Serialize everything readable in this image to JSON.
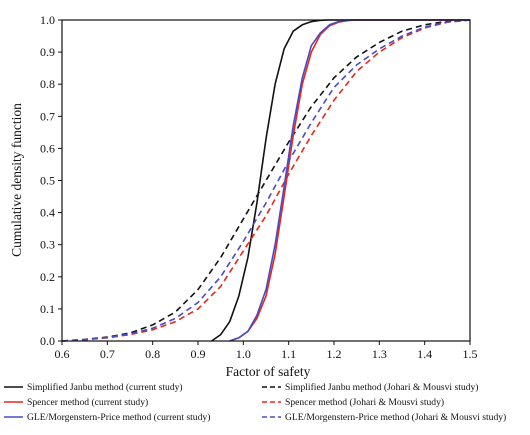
{
  "chart_data": {
    "type": "line",
    "title": "",
    "xlabel": "Factor of safety",
    "ylabel": "Cumulative density function",
    "xlim": [
      0.6,
      1.5
    ],
    "ylim": [
      0.0,
      1.0
    ],
    "x_ticks": [
      "0.6",
      "0.7",
      "0.8",
      "0.9",
      "1.0",
      "1.1",
      "1.2",
      "1.3",
      "1.4",
      "1.5"
    ],
    "y_ticks": [
      "0.0",
      "0.1",
      "0.2",
      "0.3",
      "0.4",
      "0.5",
      "0.6",
      "0.7",
      "0.8",
      "0.9",
      "1.0"
    ],
    "grid": false,
    "legend_position": "below",
    "series": [
      {
        "name": "Simplified Janbu method (current study)",
        "color": "#111111",
        "style": "solid",
        "x": [
          0.93,
          0.95,
          0.97,
          0.99,
          1.01,
          1.03,
          1.05,
          1.07,
          1.09,
          1.11,
          1.13,
          1.15,
          1.17,
          1.19,
          1.22,
          1.5
        ],
        "y": [
          0.0,
          0.02,
          0.06,
          0.14,
          0.26,
          0.43,
          0.63,
          0.8,
          0.91,
          0.965,
          0.985,
          0.995,
          0.999,
          1.0,
          1.0,
          1.0
        ]
      },
      {
        "name": "Simplified Janbu method (Johari & Mousvi study)",
        "color": "#111111",
        "style": "dashed",
        "x": [
          0.6,
          0.65,
          0.7,
          0.75,
          0.8,
          0.85,
          0.9,
          0.95,
          1.0,
          1.05,
          1.1,
          1.15,
          1.2,
          1.25,
          1.3,
          1.35,
          1.4,
          1.45,
          1.5
        ],
        "y": [
          0.0,
          0.005,
          0.012,
          0.025,
          0.05,
          0.09,
          0.16,
          0.26,
          0.38,
          0.5,
          0.62,
          0.73,
          0.82,
          0.885,
          0.93,
          0.965,
          0.985,
          0.996,
          1.0
        ]
      },
      {
        "name": "Spencer method (current study)",
        "color": "#e8261c",
        "style": "solid",
        "x": [
          0.97,
          0.99,
          1.01,
          1.03,
          1.05,
          1.07,
          1.09,
          1.11,
          1.13,
          1.15,
          1.17,
          1.19,
          1.21,
          1.23,
          1.25,
          1.28,
          1.5
        ],
        "y": [
          0.0,
          0.01,
          0.03,
          0.07,
          0.14,
          0.27,
          0.45,
          0.64,
          0.8,
          0.9,
          0.955,
          0.982,
          0.993,
          0.998,
          1.0,
          1.0,
          1.0
        ]
      },
      {
        "name": "Spencer method (Johari & Mousvi study)",
        "color": "#e8261c",
        "style": "dashed",
        "x": [
          0.6,
          0.65,
          0.7,
          0.75,
          0.8,
          0.85,
          0.9,
          0.95,
          1.0,
          1.05,
          1.1,
          1.15,
          1.2,
          1.25,
          1.3,
          1.35,
          1.4,
          1.45,
          1.5
        ],
        "y": [
          0.0,
          0.004,
          0.01,
          0.02,
          0.035,
          0.06,
          0.1,
          0.17,
          0.28,
          0.39,
          0.52,
          0.64,
          0.75,
          0.84,
          0.9,
          0.945,
          0.975,
          0.993,
          1.0
        ]
      },
      {
        "name": "GLE/Morgenstern-Price method (current study)",
        "color": "#4a4ac8",
        "style": "solid",
        "x": [
          0.97,
          0.99,
          1.01,
          1.03,
          1.05,
          1.07,
          1.09,
          1.11,
          1.13,
          1.15,
          1.17,
          1.19,
          1.21,
          1.23,
          1.25,
          1.28,
          1.5
        ],
        "y": [
          0.0,
          0.01,
          0.03,
          0.08,
          0.16,
          0.3,
          0.48,
          0.67,
          0.82,
          0.92,
          0.96,
          0.985,
          0.995,
          0.999,
          1.0,
          1.0,
          1.0
        ]
      },
      {
        "name": "GLE/Morgenstern-Price method (Johari & Mousvi study)",
        "color": "#4a4ac8",
        "style": "dashed",
        "x": [
          0.6,
          0.65,
          0.7,
          0.75,
          0.8,
          0.85,
          0.9,
          0.95,
          1.0,
          1.05,
          1.1,
          1.15,
          1.2,
          1.25,
          1.3,
          1.35,
          1.4,
          1.45,
          1.5
        ],
        "y": [
          0.0,
          0.004,
          0.011,
          0.022,
          0.04,
          0.07,
          0.12,
          0.2,
          0.31,
          0.43,
          0.56,
          0.68,
          0.79,
          0.86,
          0.91,
          0.95,
          0.978,
          0.994,
          1.0
        ]
      }
    ]
  }
}
